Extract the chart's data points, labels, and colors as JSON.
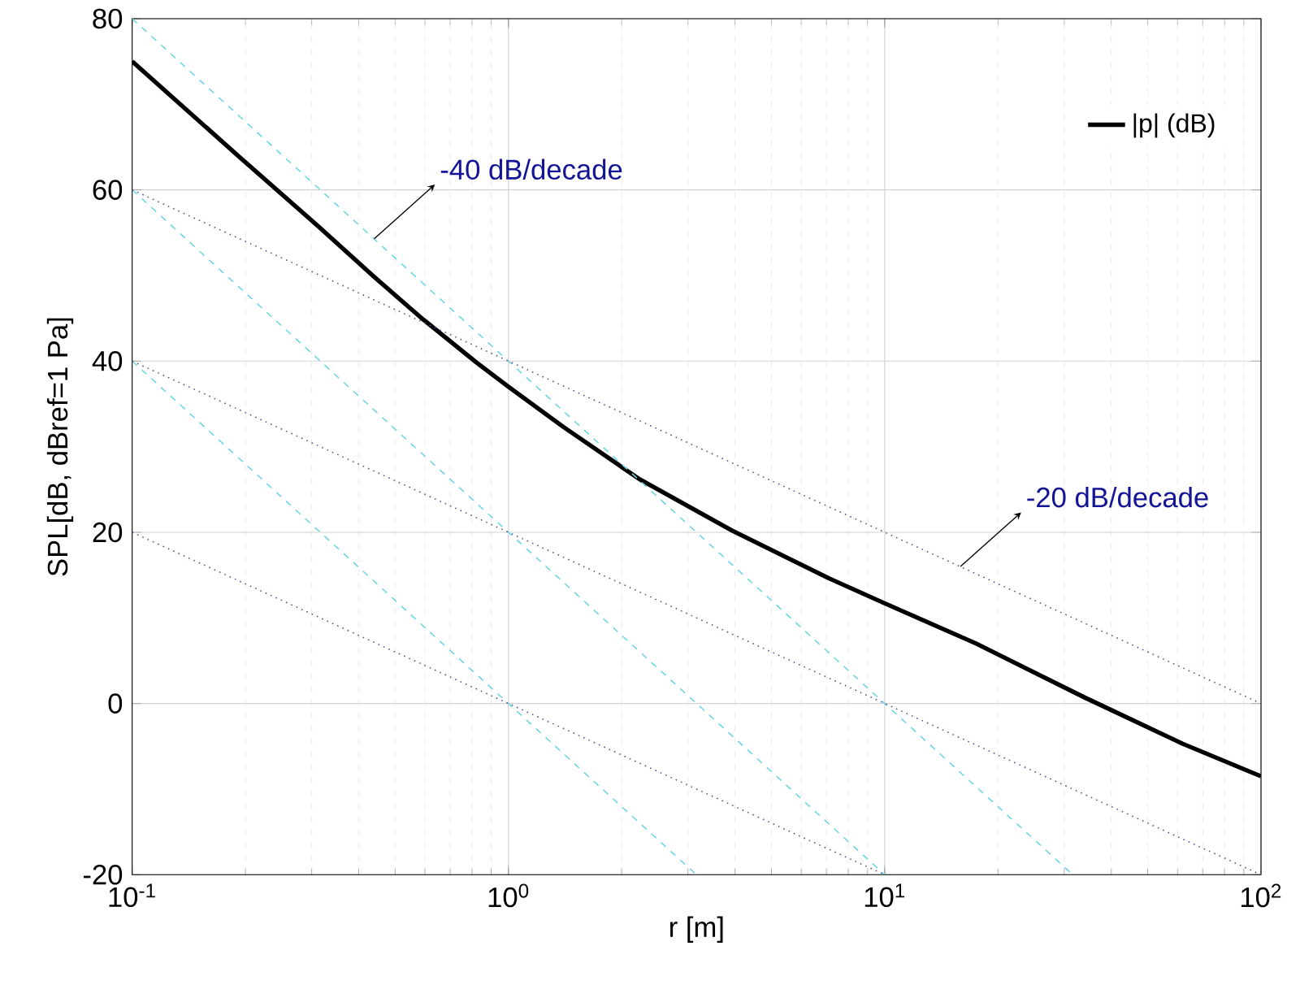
{
  "chart_data": {
    "type": "line",
    "xlabel": "r [m]",
    "ylabel": "SPL[dB, dBref=1 Pa]",
    "log": "x",
    "grid": true,
    "legend": "top right",
    "xlim": [
      0.1,
      100
    ],
    "ylim": [
      -20,
      80
    ],
    "xticks": [
      {
        "value": 0.1,
        "label": "10$^{-1}$"
      },
      {
        "value": 1,
        "label": "10$^{0}$"
      },
      {
        "value": 10,
        "label": "10$^{1}$"
      },
      {
        "value": 100,
        "label": "10$^{2}$"
      }
    ],
    "yticks": [
      -20,
      0,
      20,
      40,
      60,
      80
    ],
    "series": [
      {
        "name": "|p| (dB)",
        "color": "#000000",
        "line_style": "solid",
        "x": [
          0.1,
          0.191,
          0.315,
          0.438,
          0.592,
          0.824,
          1,
          1.4,
          2.23,
          3.93,
          7.13,
          10,
          17.5,
          34,
          61.9,
          100
        ],
        "values": [
          75,
          64,
          55.6,
          49.9,
          44.9,
          39.8,
          37,
          32.3,
          26.2,
          20.2,
          14.6,
          11.7,
          7,
          0.7,
          -4.7,
          -8.5
        ]
      },
      {
        "color": "#6fd6e3",
        "line_style": "dashed",
        "x": [
          0.1,
          31.6
        ],
        "values": [
          80,
          -20
        ]
      },
      {
        "color": "#6fd6e3",
        "line_style": "dashed",
        "x": [
          0.1,
          10
        ],
        "values": [
          60,
          -20
        ]
      },
      {
        "color": "#6fd6e3",
        "line_style": "dashed",
        "x": [
          0.1,
          3.16
        ],
        "values": [
          40,
          -20
        ]
      },
      {
        "color": "#55558c",
        "line_style": "dotted",
        "x": [
          0.1,
          100
        ],
        "values": [
          60,
          0
        ]
      },
      {
        "color": "#55558c",
        "line_style": "dotted",
        "x": [
          0.1,
          100
        ],
        "values": [
          40,
          -20
        ]
      },
      {
        "color": "#55558c",
        "line_style": "dotted",
        "x": [
          0.1,
          10
        ],
        "values": [
          20,
          -20
        ]
      }
    ],
    "annotations": [
      {
        "text": "-40 dB/decade",
        "x": 0.44,
        "y": 54.3
      },
      {
        "text": "-20 dB/decade",
        "x": 15.9,
        "y": 16
      }
    ]
  }
}
